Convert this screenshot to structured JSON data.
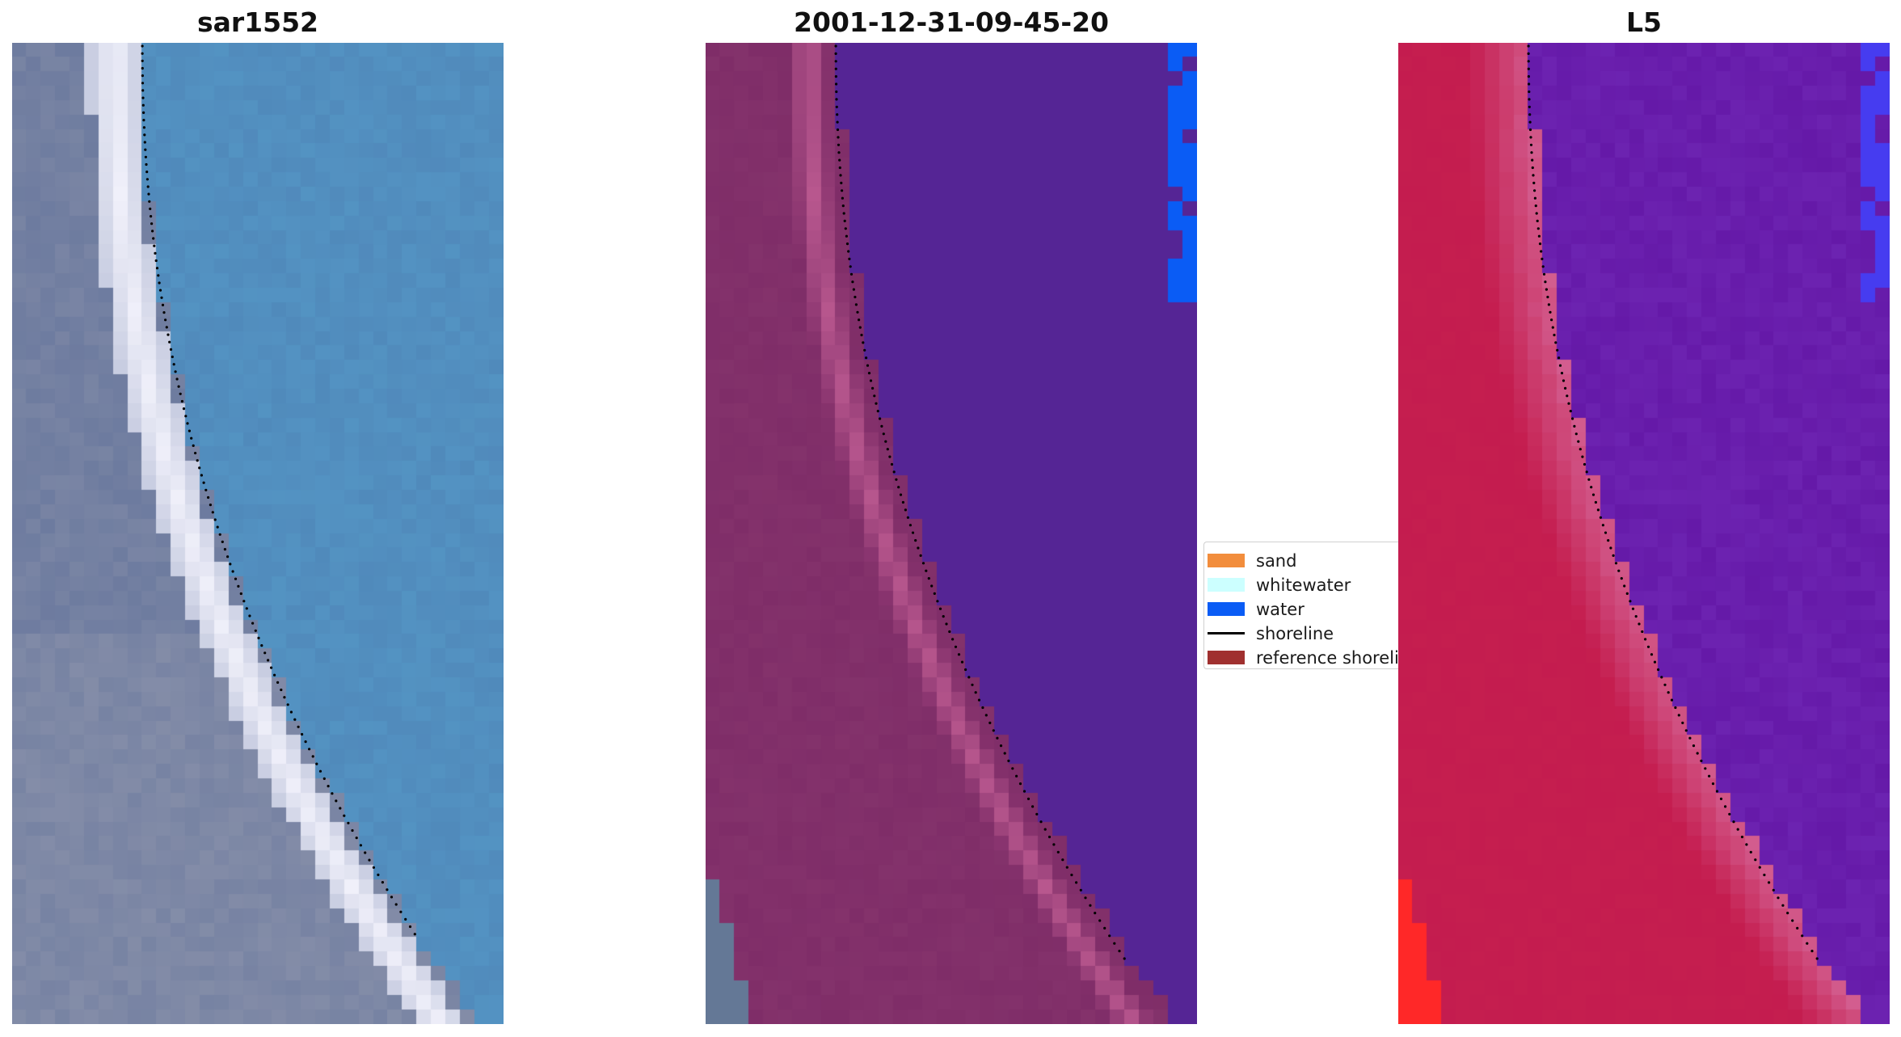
{
  "panels": [
    {
      "title": "sar1552",
      "image_description_icon": "rgb-satellite-image"
    },
    {
      "title": "2001-12-31-09-45-20",
      "image_description_icon": "classified-image"
    },
    {
      "title": "L5",
      "image_description_icon": "mndwi-image"
    }
  ],
  "legend": {
    "items": [
      {
        "label": "sand",
        "color": "#f28d3c",
        "kind": "patch"
      },
      {
        "label": "whitewater",
        "color": "#ccffff",
        "kind": "patch"
      },
      {
        "label": "water",
        "color": "#0a5cf5",
        "kind": "patch"
      },
      {
        "label": "shoreline",
        "color": "#000000",
        "kind": "line"
      },
      {
        "label": "reference shoreline",
        "color": "#a0302f",
        "kind": "patch"
      }
    ]
  },
  "colors": {
    "rgb_water": "#4f86b8",
    "rgb_land": "#6d7b9f",
    "class_water": "#552595",
    "class_land": "#7f2d68",
    "class_whitewater_band": "#b8578e",
    "mndwi_water": "#6519a8",
    "mndwi_land": "#c41c4f",
    "shoreline": "#000000"
  }
}
